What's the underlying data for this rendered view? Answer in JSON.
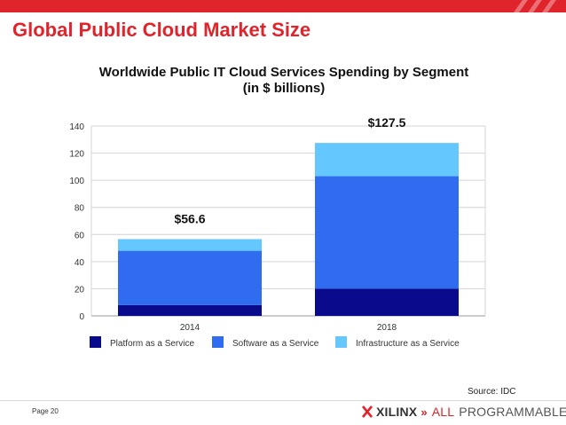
{
  "slide": {
    "title": "Global Public Cloud Market Size",
    "source": "Source: IDC",
    "page": "Page 20"
  },
  "logo": {
    "brand": "XILINX",
    "chevron": "»",
    "word1": "ALL",
    "word2": "PROGRAMMABLE."
  },
  "colors": {
    "accent": "#e0242b"
  },
  "chart_data": {
    "type": "bar",
    "stacked": true,
    "title": "Worldwide Public IT Cloud Services Spending by Segment",
    "subtitle": "(in $ billions)",
    "categories": [
      "2014",
      "2018"
    ],
    "series": [
      {
        "name": "Platform as a Service",
        "values": [
          8,
          20
        ],
        "color": "#0a0a8c"
      },
      {
        "name": "Software as a Service",
        "values": [
          40,
          83
        ],
        "color": "#2f6cf0"
      },
      {
        "name": "Infrastructure as a Service",
        "values": [
          8.6,
          24.5
        ],
        "color": "#64c8ff"
      }
    ],
    "totals": [
      "$56.6",
      "$127.5"
    ],
    "ylim": [
      0,
      140
    ],
    "yticks": [
      0,
      20,
      40,
      60,
      80,
      100,
      120,
      140
    ],
    "grid": true,
    "legend": "bottom"
  }
}
